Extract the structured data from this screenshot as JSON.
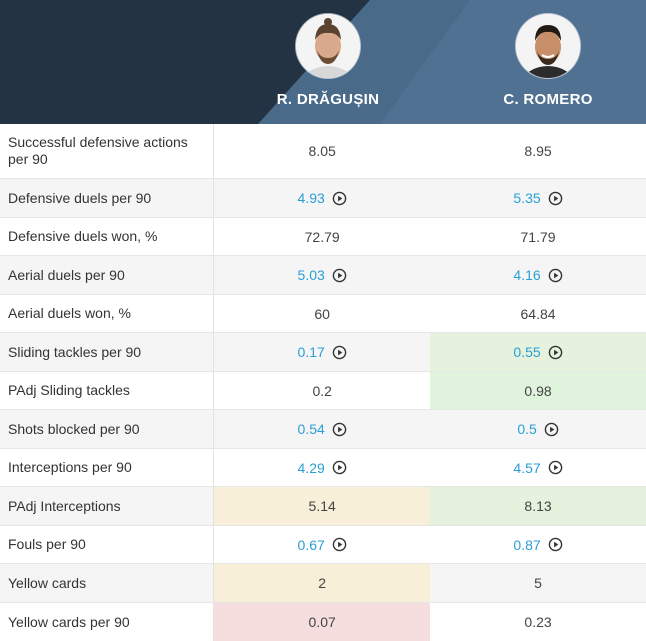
{
  "players": [
    {
      "name": "R. DRĂGUȘIN"
    },
    {
      "name": "C. ROMERO"
    }
  ],
  "colors": {
    "header_bg": "#2a3a4c",
    "link": "#2a9fd6",
    "highlight_green": "#e4f2de",
    "highlight_yellow": "#f8efd9",
    "highlight_red": "#f6dede"
  },
  "rows": [
    {
      "label": "Successful defensive actions per 90",
      "values": [
        "8.05",
        "8.95"
      ],
      "video": false
    },
    {
      "label": "Defensive duels per 90",
      "values": [
        "4.93",
        "5.35"
      ],
      "video": true
    },
    {
      "label": "Defensive duels won, %",
      "values": [
        "72.79",
        "71.79"
      ],
      "video": false
    },
    {
      "label": "Aerial duels per 90",
      "values": [
        "5.03",
        "4.16"
      ],
      "video": true
    },
    {
      "label": "Aerial duels won, %",
      "values": [
        "60",
        "64.84"
      ],
      "video": false
    },
    {
      "label": "Sliding tackles per 90",
      "values": [
        "0.17",
        "0.55"
      ],
      "video": true
    },
    {
      "label": "PAdj Sliding tackles",
      "values": [
        "0.2",
        "0.98"
      ],
      "video": false
    },
    {
      "label": "Shots blocked per 90",
      "values": [
        "0.54",
        "0.5"
      ],
      "video": true
    },
    {
      "label": "Interceptions per 90",
      "values": [
        "4.29",
        "4.57"
      ],
      "video": true
    },
    {
      "label": "PAdj Interceptions",
      "values": [
        "5.14",
        "8.13"
      ],
      "video": false
    },
    {
      "label": "Fouls per 90",
      "values": [
        "0.67",
        "0.87"
      ],
      "video": true
    },
    {
      "label": "Yellow cards",
      "values": [
        "2",
        "5"
      ],
      "video": false
    },
    {
      "label": "Yellow cards per 90",
      "values": [
        "0.07",
        "0.23"
      ],
      "video": false
    }
  ]
}
